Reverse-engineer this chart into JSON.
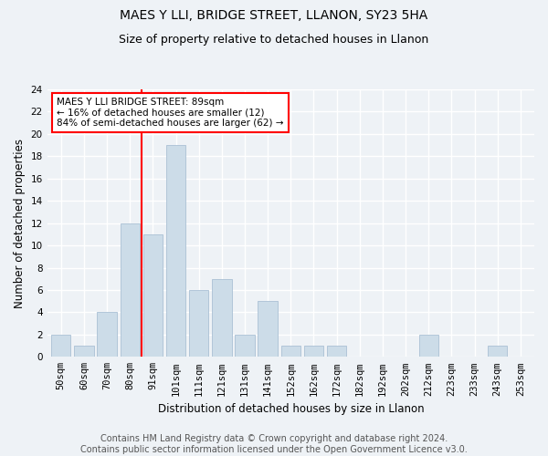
{
  "title": "MAES Y LLI, BRIDGE STREET, LLANON, SY23 5HA",
  "subtitle": "Size of property relative to detached houses in Llanon",
  "xlabel": "Distribution of detached houses by size in Llanon",
  "ylabel": "Number of detached properties",
  "bar_labels": [
    "50sqm",
    "60sqm",
    "70sqm",
    "80sqm",
    "91sqm",
    "101sqm",
    "111sqm",
    "121sqm",
    "131sqm",
    "141sqm",
    "152sqm",
    "162sqm",
    "172sqm",
    "182sqm",
    "192sqm",
    "202sqm",
    "212sqm",
    "223sqm",
    "233sqm",
    "243sqm",
    "253sqm"
  ],
  "bar_values": [
    2,
    1,
    4,
    12,
    11,
    19,
    6,
    7,
    2,
    5,
    1,
    1,
    1,
    0,
    0,
    0,
    2,
    0,
    0,
    1,
    0
  ],
  "bar_color": "#ccdce8",
  "bar_edgecolor": "#aac0d4",
  "vline_x": 3.5,
  "vline_color": "red",
  "annotation_box_text": "MAES Y LLI BRIDGE STREET: 89sqm\n← 16% of detached houses are smaller (12)\n84% of semi-detached houses are larger (62) →",
  "annotation_box_color": "red",
  "ylim": [
    0,
    24
  ],
  "yticks": [
    0,
    2,
    4,
    6,
    8,
    10,
    12,
    14,
    16,
    18,
    20,
    22,
    24
  ],
  "footer_text": "Contains HM Land Registry data © Crown copyright and database right 2024.\nContains public sector information licensed under the Open Government Licence v3.0.",
  "background_color": "#eef2f6",
  "plot_background": "#eef2f6",
  "grid_color": "white",
  "title_fontsize": 10,
  "subtitle_fontsize": 9,
  "axis_label_fontsize": 8.5,
  "tick_fontsize": 7.5,
  "footer_fontsize": 7
}
